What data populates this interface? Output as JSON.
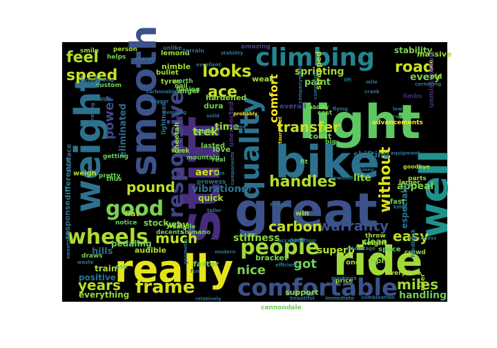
{
  "background_color": "#000000",
  "page_color": "#ffffff",
  "palette": [
    "#440154",
    "#46327e",
    "#365c8d",
    "#277f8e",
    "#1fa187",
    "#4ac16d",
    "#a0da39",
    "#fde725"
  ],
  "words": [
    {
      "text": "stiff",
      "c": "#472d7b"
    },
    {
      "text": "great",
      "c": "#3b528b"
    },
    {
      "text": "bike",
      "c": "#2c728e"
    },
    {
      "text": "light",
      "c": "#5ec962"
    },
    {
      "text": "really",
      "c": "#e5e419"
    },
    {
      "text": "ride",
      "c": "#a0da39"
    },
    {
      "text": "smooth",
      "c": "#3b528b"
    },
    {
      "text": "weight",
      "c": "#2c728e"
    },
    {
      "text": "well",
      "c": "#21918c"
    },
    {
      "text": "climbing",
      "c": "#25848e"
    },
    {
      "text": "comfortable",
      "c": "#3b528b"
    },
    {
      "text": "quality",
      "c": "#2c728e"
    },
    {
      "text": "good",
      "c": "#7ad151"
    },
    {
      "text": "people",
      "c": "#a0da39"
    },
    {
      "text": "responsive",
      "c": "#414487"
    },
    {
      "text": "wheels",
      "c": "#addc30"
    },
    {
      "text": "frame",
      "c": "#d2e21b"
    },
    {
      "text": "looks",
      "c": "#c8e020"
    },
    {
      "text": "feel",
      "c": "#b5de2b"
    },
    {
      "text": "speed",
      "c": "#c8e020"
    },
    {
      "text": "years",
      "c": "#b5de2b"
    },
    {
      "text": "much",
      "c": "#bddf26"
    },
    {
      "text": "warranty",
      "c": "#3b528b"
    },
    {
      "text": "carbon",
      "c": "#c2df23"
    },
    {
      "text": "handles",
      "c": "#b5de2b"
    },
    {
      "text": "pound",
      "c": "#bddf26"
    },
    {
      "text": "power",
      "c": "#3e4989"
    },
    {
      "text": "ace",
      "c": "#c8e020"
    },
    {
      "text": "road",
      "c": "#c8e020"
    },
    {
      "text": "easy",
      "c": "#bddf26"
    },
    {
      "text": "transfer",
      "c": "#c8e020"
    },
    {
      "text": "without",
      "c": "#dde318"
    },
    {
      "text": "comfort",
      "c": "#fde725"
    },
    {
      "text": "miles",
      "c": "#a0da39"
    },
    {
      "text": "stiffness",
      "c": "#8fd744"
    },
    {
      "text": "nice",
      "c": "#7ad151"
    },
    {
      "text": "got",
      "c": "#6ccd5a"
    },
    {
      "text": "superb",
      "c": "#b5de2b"
    },
    {
      "text": "handling",
      "c": "#6ccd5a"
    },
    {
      "text": "eliminated",
      "c": "#31688e"
    },
    {
      "text": "vibrations",
      "c": "#2c728e"
    },
    {
      "text": "trek",
      "c": "#a0da39"
    },
    {
      "text": "time",
      "c": "#a0da39"
    },
    {
      "text": "sprinting",
      "c": "#a0da39"
    },
    {
      "text": "stability",
      "c": "#7ad151"
    },
    {
      "text": "every",
      "c": "#7ad151"
    },
    {
      "text": "appeal",
      "c": "#7ad151"
    },
    {
      "text": "especially",
      "c": "#2c728e"
    },
    {
      "text": "paint",
      "c": "#7ad151"
    },
    {
      "text": "lite",
      "c": "#8fd744"
    },
    {
      "text": "everything",
      "c": "#8fd744"
    },
    {
      "text": "hills",
      "c": "#31688e"
    },
    {
      "text": "positive",
      "c": "#2c728e"
    },
    {
      "text": "response",
      "c": "#2c728e"
    },
    {
      "text": "difference",
      "c": "#277f8e"
    },
    {
      "text": "aero",
      "c": "#d2e21b"
    },
    {
      "text": "way",
      "c": "#bddf26"
    },
    {
      "text": "yet",
      "c": "#7ad151"
    },
    {
      "text": "stock",
      "c": "#7ad151"
    },
    {
      "text": "quick",
      "c": "#addc30"
    },
    {
      "text": "flat",
      "c": "#addc30"
    },
    {
      "text": "pedaling",
      "c": "#6ccd5a"
    },
    {
      "text": "train",
      "c": "#addc30"
    },
    {
      "text": "surface",
      "c": "#31688e"
    },
    {
      "text": "audible",
      "c": "#addc30"
    },
    {
      "text": "bracket",
      "c": "#7ad151"
    },
    {
      "text": "support",
      "c": "#8fd744"
    },
    {
      "text": "clean",
      "c": "#6ccd5a"
    },
    {
      "text": "mph",
      "c": "#8fd744"
    },
    {
      "text": "dura",
      "c": "#6ccd5a"
    },
    {
      "text": "hardened",
      "c": "#8fd744"
    },
    {
      "text": "angel",
      "c": "#7ad151"
    },
    {
      "text": "weak",
      "c": "#a0da39"
    },
    {
      "text": "nimble",
      "c": "#a0da39"
    },
    {
      "text": "lemond",
      "c": "#a0da39"
    },
    {
      "text": "tyres",
      "c": "#a0da39"
    },
    {
      "text": "bullet",
      "c": "#a0da39"
    },
    {
      "text": "shifting",
      "c": "#2c728e"
    },
    {
      "text": "coast",
      "c": "#7ad151"
    },
    {
      "text": "strapped",
      "c": "#bddf26"
    },
    {
      "text": "massive",
      "c": "#a0da39"
    },
    {
      "text": "overall",
      "c": "#414487"
    },
    {
      "text": "smile",
      "c": "#a0da39"
    },
    {
      "text": "custom",
      "c": "#7ad151"
    },
    {
      "text": "helps",
      "c": "#7ad151"
    },
    {
      "text": "cheetah",
      "c": "#8fd744"
    },
    {
      "text": "mountain",
      "c": "#6ccd5a"
    },
    {
      "text": "love",
      "c": "#7ad151"
    },
    {
      "text": "faster",
      "c": "#7ad151"
    },
    {
      "text": "shimano",
      "c": "#6ccd5a"
    },
    {
      "text": "weigh",
      "c": "#addc30"
    },
    {
      "text": "thus",
      "c": "#6ccd5a"
    },
    {
      "text": "notice",
      "c": "#6ccd5a"
    },
    {
      "text": "saddle",
      "c": "#6ccd5a"
    },
    {
      "text": "amazing",
      "c": "#414487"
    },
    {
      "text": "flexing",
      "c": "#6ccd5a"
    },
    {
      "text": "limbs",
      "c": "#482878"
    },
    {
      "text": "unmistakeable",
      "c": "#472d7b"
    },
    {
      "text": "lasted",
      "c": "#7ad151"
    },
    {
      "text": "fast",
      "c": "#6ccd5a"
    },
    {
      "text": "win",
      "c": "#addc30"
    },
    {
      "text": "height",
      "c": "#addc30"
    },
    {
      "text": "throw",
      "c": "#addc30"
    },
    {
      "text": "crowd",
      "c": "#8fd744"
    },
    {
      "text": "space",
      "c": "#6ccd5a"
    },
    {
      "text": "cannondale",
      "c": "#6ccd5a"
    },
    {
      "text": "one",
      "c": "#addc30"
    },
    {
      "text": "rider",
      "c": "#addc30"
    },
    {
      "text": "everytime",
      "c": "#addc30"
    },
    {
      "text": "price",
      "c": "#addc30"
    },
    {
      "text": "parts",
      "c": "#a0da39"
    },
    {
      "text": "larger",
      "c": "#a0da39"
    },
    {
      "text": "old",
      "c": "#a0da39"
    },
    {
      "text": "person",
      "c": "#a0da39"
    },
    {
      "text": "getting",
      "c": "#6ccd5a"
    },
    {
      "text": "pretty",
      "c": "#6ccd5a"
    },
    {
      "text": "draws",
      "c": "#6ccd5a"
    },
    {
      "text": "ask",
      "c": "#6ccd5a"
    },
    {
      "text": "decents",
      "c": "#6ccd5a"
    },
    {
      "text": "week",
      "c": "#8fd744"
    },
    {
      "text": "real",
      "c": "#6ccd5a"
    },
    {
      "text": "snob",
      "c": "#6ccd5a"
    },
    {
      "text": "nail",
      "c": "#8fd744"
    },
    {
      "text": "worth",
      "c": "#6ccd5a"
    },
    {
      "text": "cost",
      "c": "#6ccd5a"
    },
    {
      "text": "fit",
      "c": "#6ccd5a"
    },
    {
      "text": "ability",
      "c": "#8fd744"
    },
    {
      "text": "unexpected",
      "c": "#472d7b"
    },
    {
      "text": "acceleration",
      "c": "#2c728e"
    },
    {
      "text": "prowess",
      "c": "#2c728e"
    },
    {
      "text": "feedback",
      "c": "#2c728e"
    },
    {
      "text": "lightness",
      "c": "#2c728e"
    },
    {
      "text": "advancements",
      "c": "#fde725"
    },
    {
      "text": "goodbye",
      "c": "#bddf26"
    },
    {
      "text": "post",
      "c": "#2c728e"
    },
    {
      "text": "unlike",
      "c": "#2c728e"
    },
    {
      "text": "terrain",
      "c": "#2c728e"
    },
    {
      "text": "excellent",
      "c": "#2c728e"
    },
    {
      "text": "energy",
      "c": "#2c728e"
    },
    {
      "text": "outstanding",
      "c": "#2c728e"
    },
    {
      "text": "problem",
      "c": "#2c728e"
    },
    {
      "text": "bigger",
      "c": "#2c728e"
    },
    {
      "text": "solid",
      "c": "#2c728e"
    },
    {
      "text": "dime",
      "c": "#2c728e"
    },
    {
      "text": "probably",
      "c": "#fde725"
    },
    {
      "text": "downhill",
      "c": "#2c728e"
    },
    {
      "text": "strong",
      "c": "#2c728e"
    },
    {
      "text": "taller",
      "c": "#2c728e"
    },
    {
      "text": "efficient",
      "c": "#2c728e"
    },
    {
      "text": "markings",
      "c": "#2c728e"
    },
    {
      "text": "waste",
      "c": "#2c728e"
    },
    {
      "text": "modern",
      "c": "#2c728e"
    },
    {
      "text": "fun",
      "c": "#2c728e"
    },
    {
      "text": "immediate",
      "c": "#2c728e"
    },
    {
      "text": "combination",
      "c": "#2c728e"
    },
    {
      "text": "beautiful",
      "c": "#2c728e"
    },
    {
      "text": "relatively",
      "c": "#2c728e"
    },
    {
      "text": "plus",
      "c": "#2c728e"
    },
    {
      "text": "equipment",
      "c": "#2c728e"
    },
    {
      "text": "cornering",
      "c": "#2c728e"
    },
    {
      "text": "flying",
      "c": "#2c728e"
    },
    {
      "text": "crank",
      "c": "#2c728e"
    },
    {
      "text": "low",
      "c": "#2c728e"
    },
    {
      "text": "run",
      "c": "#2c728e"
    },
    {
      "text": "braking",
      "c": "#2c728e"
    },
    {
      "text": "wiggle",
      "c": "#2c728e"
    },
    {
      "text": "companymade",
      "c": "#2c728e"
    },
    {
      "text": "comments",
      "c": "#2c728e"
    },
    {
      "text": "harshness",
      "c": "#2c728e"
    },
    {
      "text": "advantage",
      "c": "#2c728e"
    },
    {
      "text": "mile",
      "c": "#2c728e"
    },
    {
      "text": "killer",
      "c": "#2c728e"
    },
    {
      "text": "sweetness",
      "c": "#2c728e"
    },
    {
      "text": "stability",
      "c": "#2c728e"
    },
    {
      "text": "avoiding",
      "c": "#2c728e"
    },
    {
      "text": "tourmalet",
      "c": "#fde725"
    },
    {
      "text": "lift",
      "c": "#2c728e"
    },
    {
      "text": "components",
      "c": "#2c728e"
    },
    {
      "text": "eddy",
      "c": "#2c728e"
    },
    {
      "text": "skinny",
      "c": "#2c728e"
    },
    {
      "text": "carbonable",
      "c": "#2c728e"
    },
    {
      "text": "geometry",
      "c": "#2c728e"
    },
    {
      "text": "big",
      "c": "#6ccd5a"
    }
  ]
}
